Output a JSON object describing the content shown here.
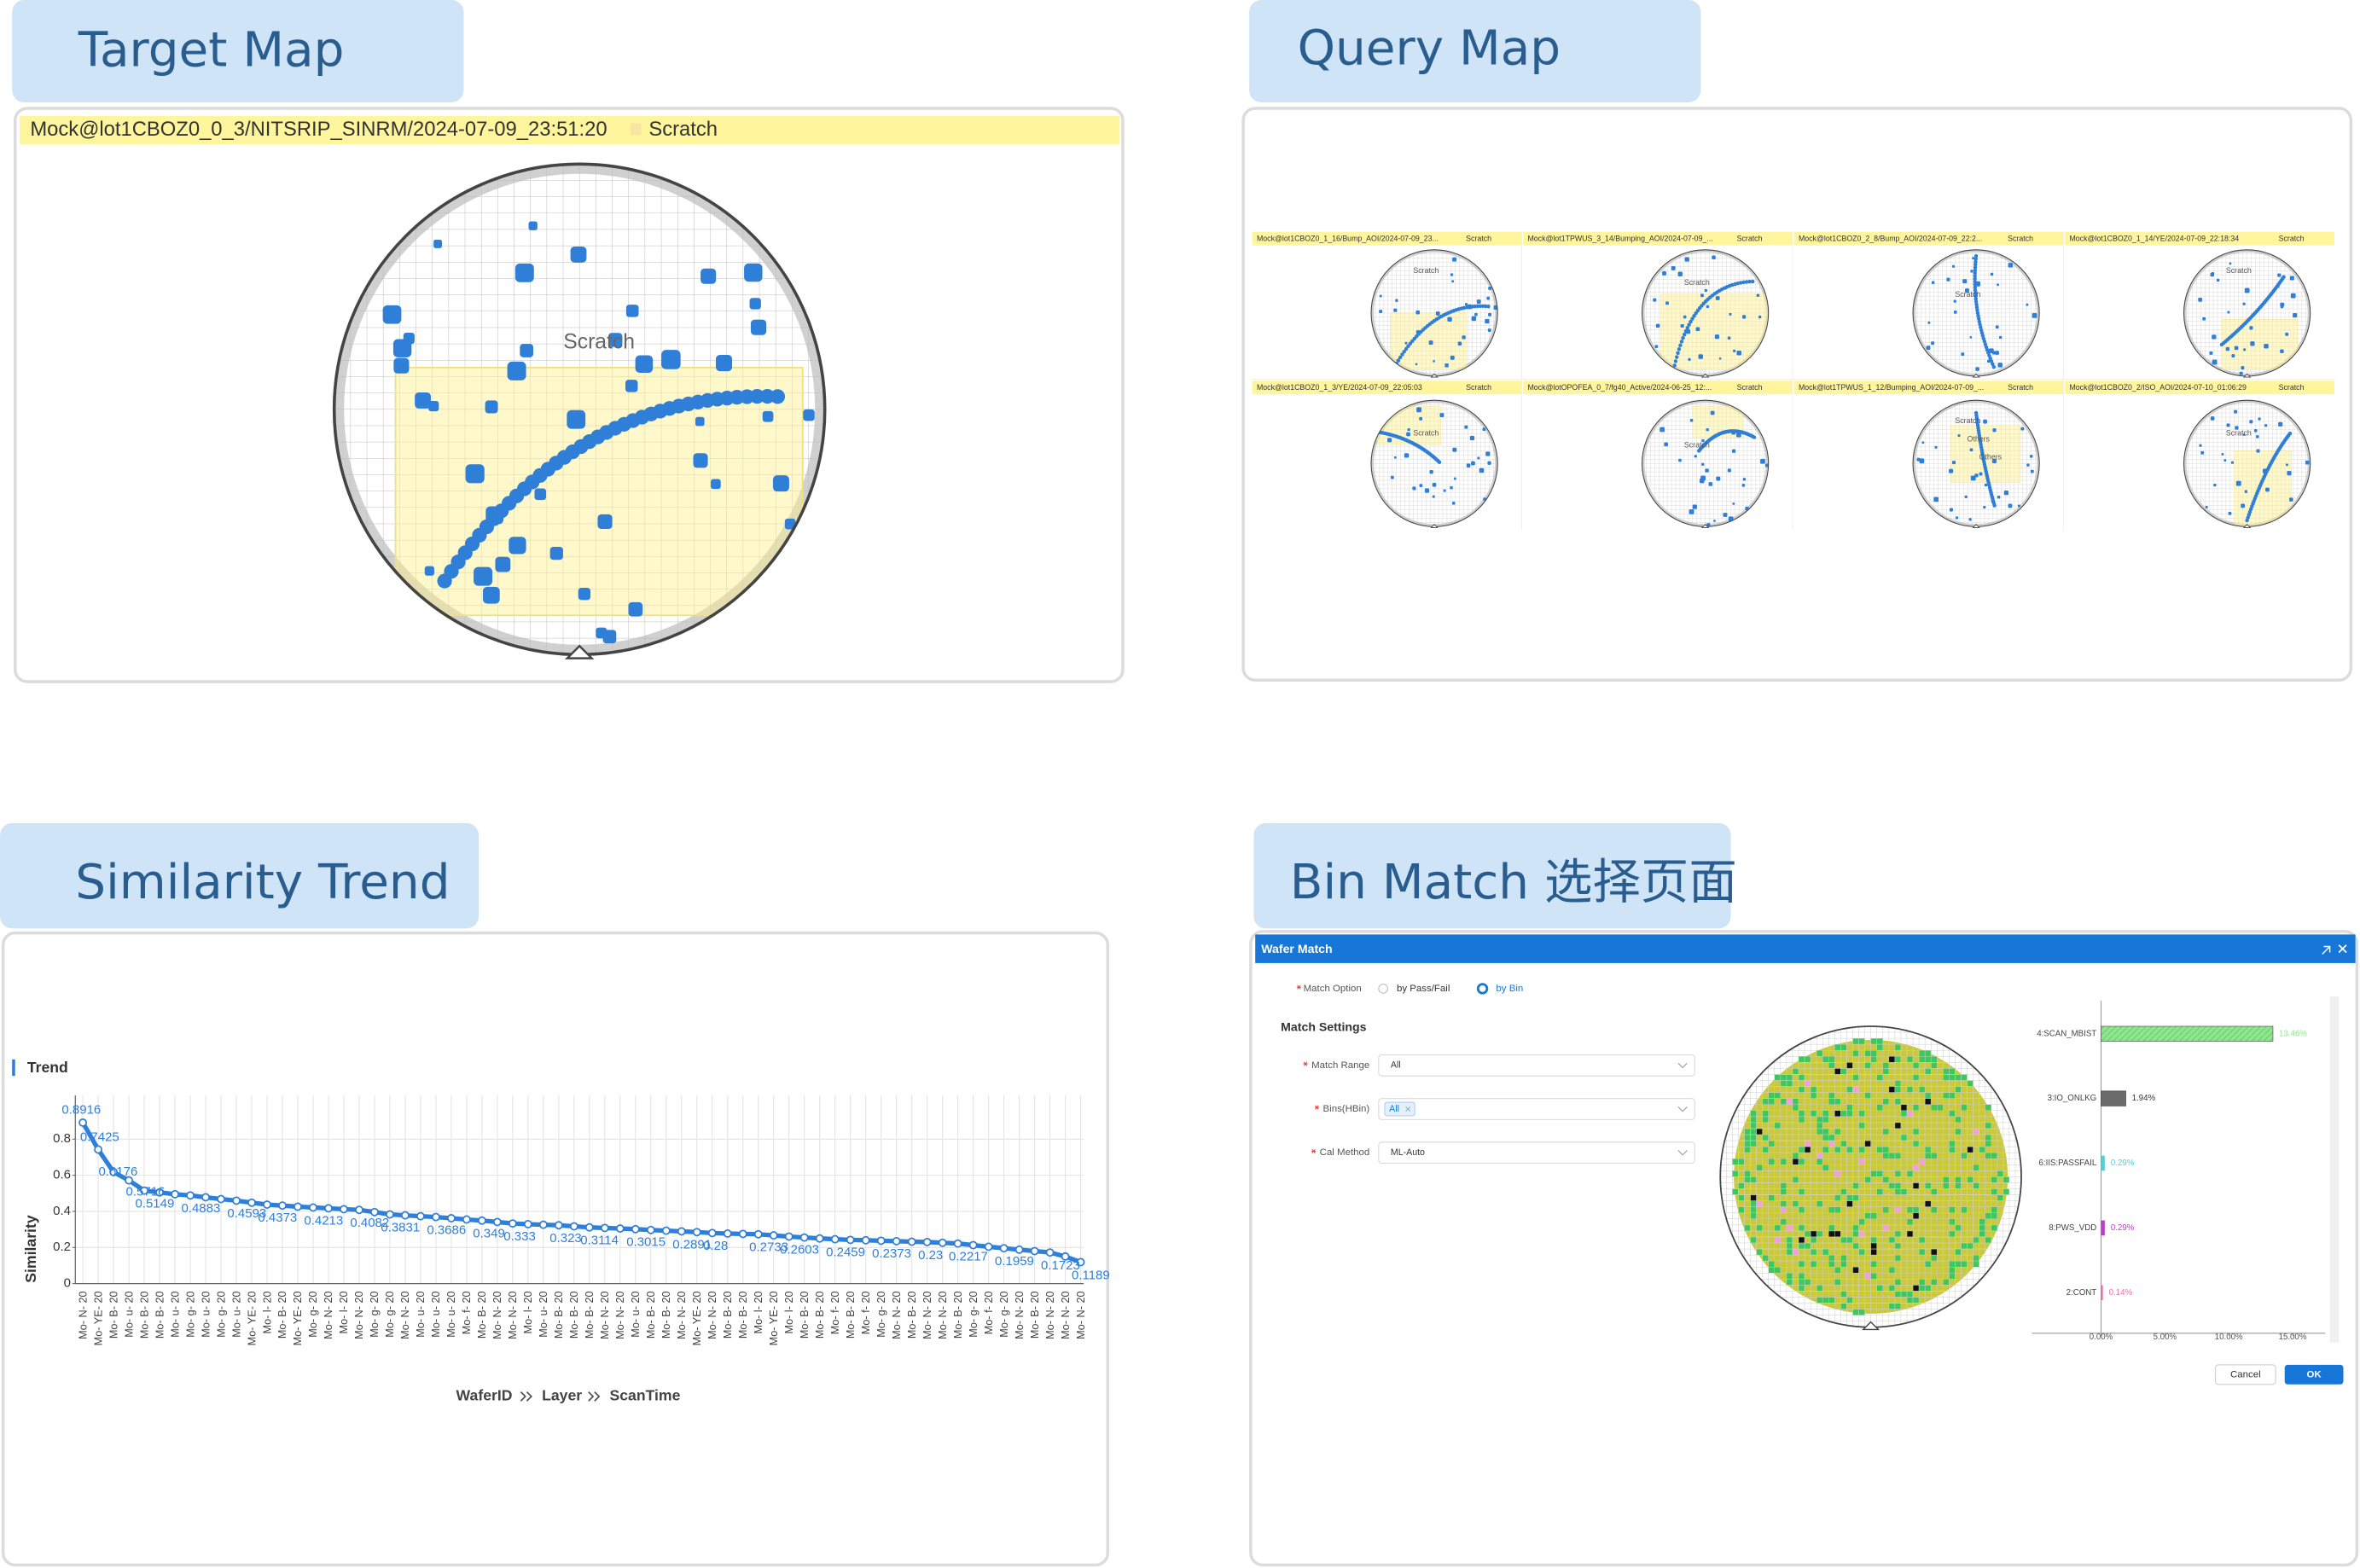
{
  "panels": [
    {
      "title": "Target Map"
    },
    {
      "title": "Query Map"
    },
    {
      "title": "Similarity Trend"
    },
    {
      "title": "Bin Match 选择页面"
    }
  ],
  "target_map": {
    "header": "Mock@lot1CBOZ0_0_3/NITSRIP_SINRM/2024-07-09_23:51:20",
    "tag": "Scratch",
    "region_label": "Scratch"
  },
  "query_map": {
    "thumbnails": [
      {
        "header": "Mock@lot1CBOZ0_1_16/Bump_AOI/2024-07-09_23...",
        "tag": "Scratch",
        "labels": [
          "Scratch"
        ]
      },
      {
        "header": "Mock@lot1TPWUS_3_14/Bumping_AOI/2024-07-09_...",
        "tag": "Scratch",
        "labels": [
          "Scratch"
        ]
      },
      {
        "header": "Mock@lot1CBOZ0_2_8/Bump_AOI/2024-07-09_22:2...",
        "tag": "Scratch",
        "labels": [
          "Scratch"
        ]
      },
      {
        "header": "Mock@lot1CBOZ0_1_14/YE/2024-07-09_22:18:34",
        "tag": "Scratch",
        "labels": [
          "Scratch"
        ]
      },
      {
        "header": "Mock@lot1CBOZ0_1_3/YE/2024-07-09_22:05:03",
        "tag": "Scratch",
        "labels": [
          "Scratch"
        ]
      },
      {
        "header": "Mock@lotOPOFEA_0_7/fg40_Active/2024-06-25_12:...",
        "tag": "Scratch",
        "labels": [
          "Scratch"
        ]
      },
      {
        "header": "Mock@lot1TPWUS_1_12/Bumping_AOI/2024-07-09_...",
        "tag": "Scratch",
        "labels": [
          "Scratch",
          "Others",
          "Others"
        ]
      },
      {
        "header": "Mock@lot1CBOZ0_2/ISO_AOI/2024-07-10_01:06:29",
        "tag": "Scratch",
        "labels": [
          "Scratch"
        ]
      }
    ]
  },
  "trend_chart": {
    "type": "line",
    "title": "Trend",
    "y_label": "Similarity",
    "x_label": [
      "WaferID",
      "Layer",
      "ScanTime"
    ],
    "categories": [
      "Mo- N- 20",
      "Mo- YE- 20",
      "Mo- B- 20",
      "Mo- u- 20",
      "Mo- B- 20",
      "Mo- B- 20",
      "Mo- u- 20",
      "Mo- g- 20",
      "Mo- u- 20",
      "Mo- g- 20",
      "Mo- u- 20",
      "Mo- YE- 20",
      "Mo- l- 20",
      "Mo- B- 20",
      "Mo- YE- 20",
      "Mo- g- 20",
      "Mo- N- 20",
      "Mo- l- 20",
      "Mo- N- 20",
      "Mo- g- 20",
      "Mo- g- 20",
      "Mo- N- 20",
      "Mo- u- 20",
      "Mo- u- 20",
      "Mo- u- 20",
      "Mo- f- 20",
      "Mo- B- 20",
      "Mo- N- 20",
      "Mo- N- 20",
      "Mo- l- 20",
      "Mo- u- 20",
      "Mo- B- 20",
      "Mo- B- 20",
      "Mo- B- 20",
      "Mo- N- 20",
      "Mo- N- 20",
      "Mo- u- 20",
      "Mo- B- 20",
      "Mo- B- 20",
      "Mo- N- 20",
      "Mo- YE- 20",
      "Mo- N- 20",
      "Mo- B- 20",
      "Mo- B- 20",
      "Mo- l- 20",
      "Mo- YE- 20",
      "Mo- l- 20",
      "Mo- B- 20",
      "Mo- B- 20",
      "Mo- f- 20",
      "Mo- B- 20",
      "Mo- f- 20",
      "Mo- g- 20",
      "Mo- N- 20",
      "Mo- B- 20",
      "Mo- N- 20",
      "Mo- N- 20",
      "Mo- B- 20",
      "Mo- g- 20",
      "Mo- f- 20",
      "Mo- g- 20",
      "Mo- N- 20",
      "Mo- B- 20",
      "Mo- N- 20",
      "Mo- N- 20",
      "Mo- N- 20"
    ],
    "values": [
      0.8916,
      0.7425,
      0.6176,
      0.5716,
      0.5149,
      0.505,
      0.495,
      0.4883,
      0.478,
      0.468,
      0.4593,
      0.448,
      0.4373,
      0.432,
      0.426,
      0.4213,
      0.417,
      0.412,
      0.4082,
      0.396,
      0.3831,
      0.378,
      0.373,
      0.3686,
      0.362,
      0.355,
      0.349,
      0.341,
      0.333,
      0.329,
      0.326,
      0.323,
      0.317,
      0.3114,
      0.308,
      0.305,
      0.3015,
      0.297,
      0.293,
      0.2891,
      0.285,
      0.28,
      0.277,
      0.275,
      0.2733,
      0.267,
      0.2603,
      0.255,
      0.25,
      0.2459,
      0.242,
      0.24,
      0.2373,
      0.235,
      0.232,
      0.23,
      0.226,
      0.2217,
      0.213,
      0.204,
      0.1959,
      0.188,
      0.18,
      0.1723,
      0.15,
      0.1189
    ],
    "color": "#2f7fd8",
    "ylim": [
      0,
      1
    ],
    "yticks": [
      0,
      0.2,
      0.4,
      0.6,
      0.8
    ],
    "grid": true
  },
  "wafer_match": {
    "title": "Wafer Match",
    "match_option": {
      "label": "Match Option",
      "options": [
        "by Pass/Fail",
        "by Bin"
      ],
      "selected": 1
    },
    "section": "Match Settings",
    "fields": [
      {
        "label": "Match Range",
        "value": "All"
      },
      {
        "label": "Bins(HBin)",
        "value": "All"
      },
      {
        "label": "Cal Method",
        "value": "ML-Auto"
      }
    ],
    "bin_chart": {
      "type": "bar",
      "orientation": "horizontal",
      "categories": [
        "4:SCAN_MBIST",
        "3:IO_ONLKG",
        "6:IIS:PASSFAIL",
        "8:PWS_VDD",
        "2:CONT"
      ],
      "values": [
        13.46,
        1.94,
        0.29,
        0.29,
        0.14
      ],
      "value_labels": [
        "13.46%",
        "1.94%",
        "0.29%",
        "0.29%",
        "0.14%"
      ],
      "colors": [
        "#8ee68e",
        "#6b6b6b",
        "#4fd1d9",
        "#c03ad0",
        "#f06aa8"
      ],
      "xlim": [
        0,
        16.5
      ],
      "xticks": [
        {
          "value": 0,
          "label": "0.00%"
        },
        {
          "value": 5,
          "label": "5.00%"
        },
        {
          "value": 10,
          "label": "10.00%"
        },
        {
          "value": 15,
          "label": "15.00%"
        }
      ]
    },
    "buttons": [
      "Cancel",
      "OK"
    ]
  }
}
